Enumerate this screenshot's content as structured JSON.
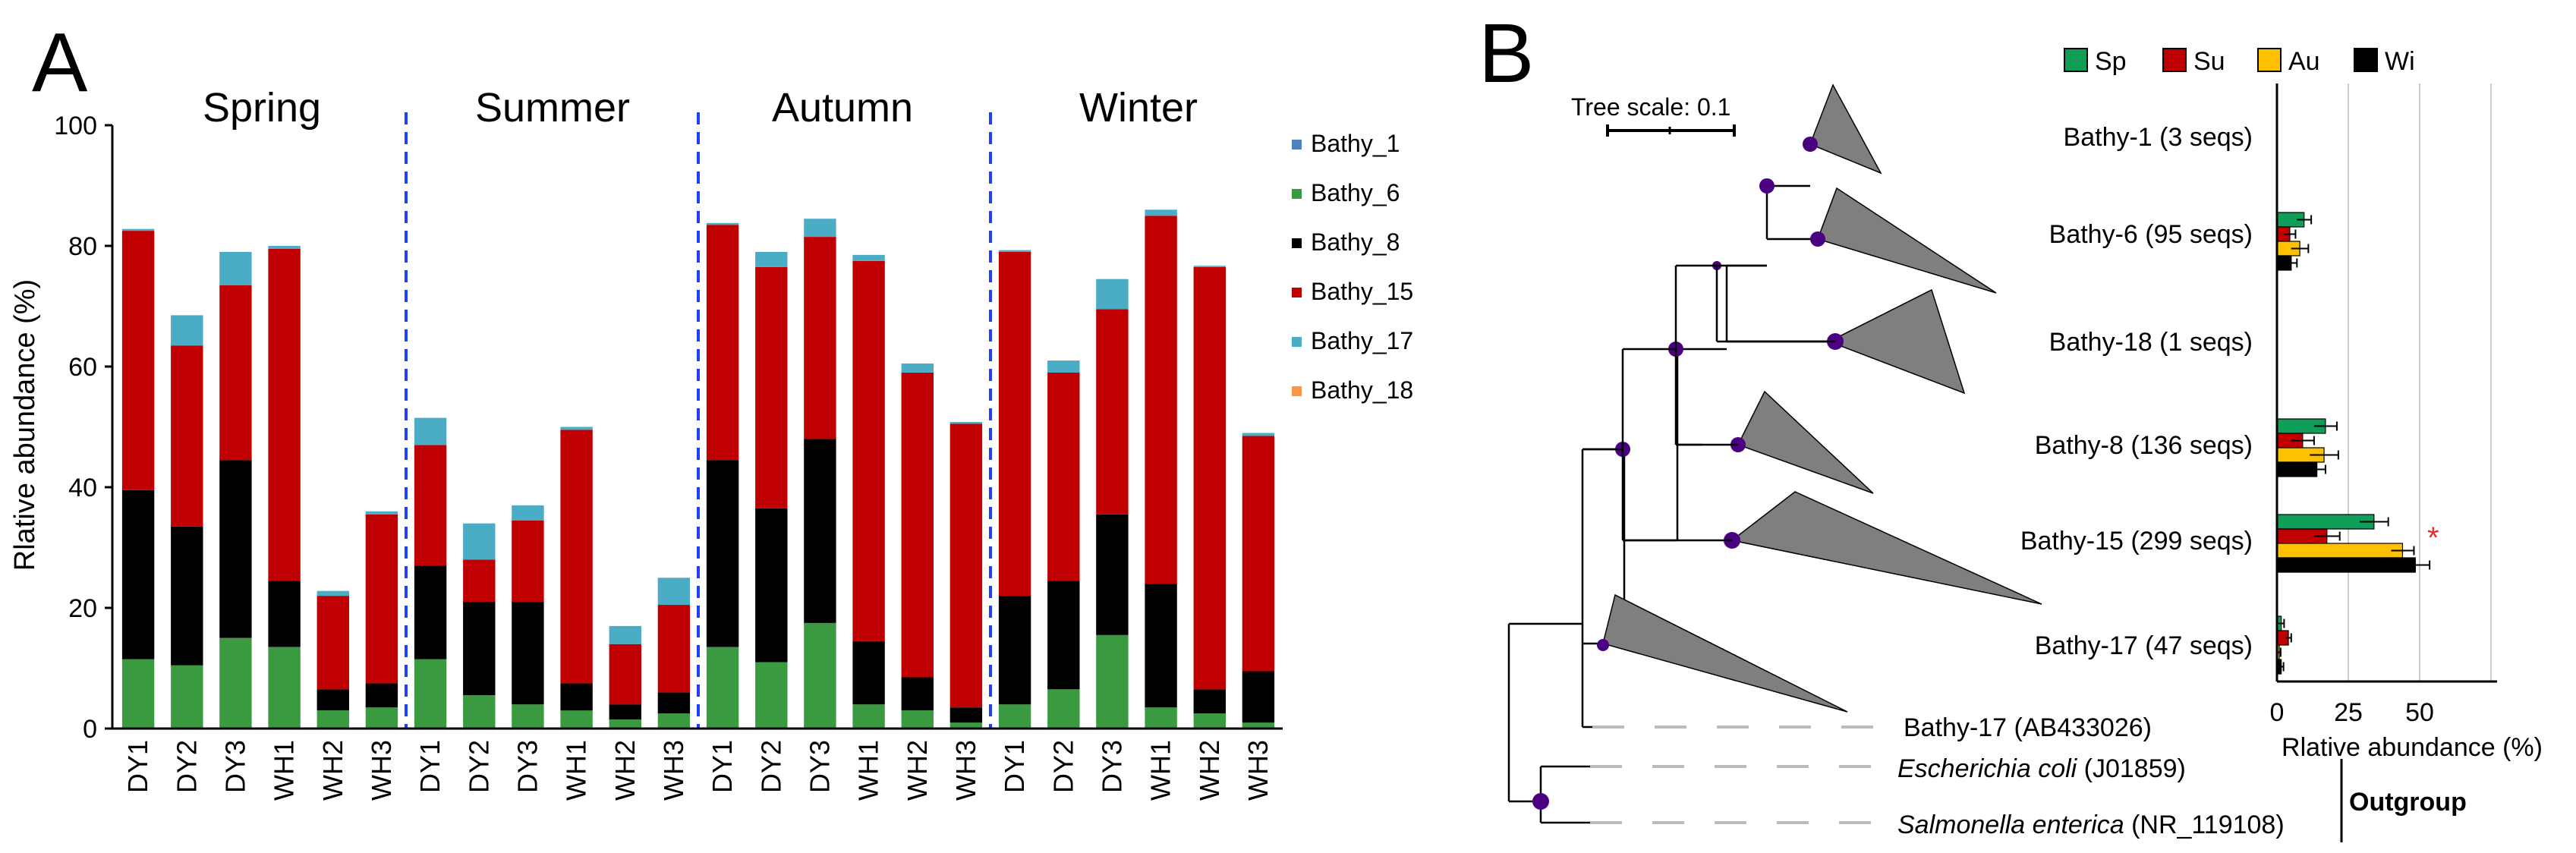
{
  "panel_a": {
    "letter": "A",
    "season_labels": [
      "Spring",
      "Summer",
      "Autumn",
      "Winter"
    ],
    "ylabel": "Rlative abundance (%)",
    "yticks": [
      "0",
      "20",
      "40",
      "60",
      "80",
      "100"
    ],
    "legend": [
      "Bathy_1",
      "Bathy_6",
      "Bathy_8",
      "Bathy_15",
      "Bathy_17",
      "Bathy_18"
    ]
  },
  "panel_b": {
    "letter": "B",
    "tree_scale": "Tree scale: 0.1",
    "clades": [
      "Bathy-1 (3 seqs)",
      "Bathy-6 (95 seqs)",
      "Bathy-18 (1 seqs)",
      "Bathy-8 (136 seqs)",
      "Bathy-15 (299 seqs)",
      "Bathy-17 (47 seqs)"
    ],
    "ref_bathy": "Bathy-17 (AB433026)",
    "ecoli_species": "Escherichia coli",
    "ecoli_acc": " (J01859)",
    "salm_species": "Salmonella enterica",
    "salm_acc": " (NR_119108)",
    "outgroup": "Outgroup",
    "legend": [
      "Sp",
      "Su",
      "Au",
      "Wi"
    ],
    "xticks": [
      "0",
      "25",
      "50"
    ],
    "xlabel": "Rlative abundance (%)",
    "significance_mark": "*"
  },
  "colors": {
    "Bathy_1": "#4f81bd",
    "Bathy_6": "#3a9a3f",
    "Bathy_8": "#000000",
    "Bathy_15": "#c00000",
    "Bathy_17": "#4bacc6",
    "Bathy_18": "#f79646",
    "Sp": "#0f9d58",
    "Su": "#c00000",
    "Au": "#ffc000",
    "Wi": "#000000",
    "node": "#4b0082",
    "clade": "#7f7f7f",
    "divider": "#1f3fff"
  },
  "chart_data": [
    {
      "type": "bar",
      "stacked": true,
      "title": "",
      "xlabel": "",
      "ylabel": "Rlative abundance (%)",
      "ylim": [
        0,
        100
      ],
      "groups": [
        "Spring",
        "Summer",
        "Autumn",
        "Winter"
      ],
      "categories": [
        "DY1",
        "DY2",
        "DY3",
        "WH1",
        "WH2",
        "WH3",
        "DY1",
        "DY2",
        "DY3",
        "WH1",
        "WH2",
        "WH3",
        "DY1",
        "DY2",
        "DY3",
        "WH1",
        "WH2",
        "WH3",
        "DY1",
        "DY2",
        "DY3",
        "WH1",
        "WH2",
        "WH3"
      ],
      "series": [
        {
          "name": "Bathy_6",
          "values": [
            11.5,
            10.5,
            15.0,
            13.5,
            3.0,
            3.5,
            11.5,
            5.5,
            4.0,
            3.0,
            1.5,
            2.5,
            13.5,
            11.0,
            17.5,
            4.0,
            3.0,
            1.0,
            4.0,
            6.5,
            15.5,
            3.5,
            2.5,
            1.0
          ]
        },
        {
          "name": "Bathy_8",
          "values": [
            28.0,
            23.0,
            29.5,
            11.0,
            3.5,
            4.0,
            15.5,
            15.5,
            17.0,
            4.5,
            2.5,
            3.5,
            31.0,
            25.5,
            30.5,
            10.5,
            5.5,
            2.5,
            18.0,
            18.0,
            20.0,
            20.5,
            4.0,
            8.5
          ]
        },
        {
          "name": "Bathy_15",
          "values": [
            43.0,
            30.0,
            29.0,
            55.0,
            15.5,
            28.0,
            20.0,
            7.0,
            13.5,
            42.0,
            10.0,
            14.5,
            39.0,
            40.0,
            33.5,
            63.0,
            50.5,
            47.0,
            57.0,
            34.5,
            34.0,
            61.0,
            70.0,
            39.0
          ]
        },
        {
          "name": "Bathy_17",
          "values": [
            0.3,
            5.0,
            5.5,
            0.5,
            0.8,
            0.5,
            4.5,
            6.0,
            2.5,
            0.5,
            3.0,
            4.5,
            0.3,
            2.5,
            3.0,
            1.0,
            1.5,
            0.3,
            0.3,
            2.0,
            5.0,
            1.0,
            0.2,
            0.5
          ]
        }
      ]
    },
    {
      "type": "bar",
      "orientation": "horizontal",
      "xlabel": "Rlative abundance (%)",
      "xlim": [
        0,
        75
      ],
      "categories": [
        "Bathy-1 (3 seqs)",
        "Bathy-6 (95 seqs)",
        "Bathy-18 (1 seqs)",
        "Bathy-8 (136 seqs)",
        "Bathy-15 (299 seqs)",
        "Bathy-17 (47 seqs)"
      ],
      "series": [
        {
          "name": "Sp",
          "values": [
            0.2,
            9.5,
            0.1,
            17.0,
            34.0,
            1.5
          ],
          "errors": [
            0.2,
            2.5,
            0.1,
            4.0,
            5.0,
            1.0
          ]
        },
        {
          "name": "Su",
          "values": [
            0.2,
            4.5,
            0.1,
            9.0,
            17.5,
            4.0
          ],
          "errors": [
            0.2,
            2.0,
            0.1,
            4.0,
            4.5,
            1.0
          ]
        },
        {
          "name": "Au",
          "values": [
            0.1,
            8.0,
            0.1,
            16.5,
            44.0,
            0.8
          ],
          "errors": [
            0.1,
            3.0,
            0.1,
            5.0,
            4.0,
            0.5
          ]
        },
        {
          "name": "Wi",
          "values": [
            0.2,
            5.0,
            0.1,
            14.0,
            48.5,
            1.5
          ],
          "errors": [
            0.2,
            2.0,
            0.1,
            3.0,
            5.0,
            0.8
          ]
        }
      ]
    }
  ]
}
